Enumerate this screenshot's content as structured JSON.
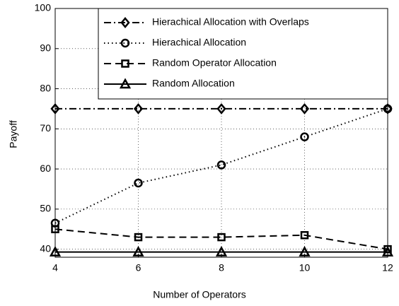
{
  "chart_data": {
    "type": "line",
    "x_label": "Number of Operators",
    "y_label": "Payoff",
    "x": [
      4,
      6,
      8,
      10,
      12
    ],
    "series": [
      {
        "name": "Hierachical Allocation with Overlaps",
        "color": "#000000",
        "linestyle": "dashdot",
        "marker": "diamond",
        "values": [
          75,
          75,
          75,
          75,
          75
        ]
      },
      {
        "name": "Hierachical Allocation",
        "color": "#000000",
        "linestyle": "dotted",
        "marker": "circle",
        "values": [
          46.5,
          56.5,
          61,
          68,
          75
        ]
      },
      {
        "name": "Random Operator Allocation",
        "color": "#000000",
        "linestyle": "dashed",
        "marker": "square",
        "values": [
          45,
          43,
          43,
          43.5,
          40
        ]
      },
      {
        "name": "Random Allocation",
        "color": "#000000",
        "linestyle": "solid",
        "marker": "triangle",
        "values": [
          39.3,
          39.3,
          39.3,
          39.3,
          39.3
        ]
      }
    ],
    "xlim": [
      4,
      12
    ],
    "xticks": [
      4,
      6,
      8,
      10,
      12
    ],
    "ylim": [
      38,
      100
    ],
    "yticks": [
      40,
      50,
      60,
      70,
      80,
      90,
      100
    ],
    "grid": true,
    "legend": "upper right"
  }
}
